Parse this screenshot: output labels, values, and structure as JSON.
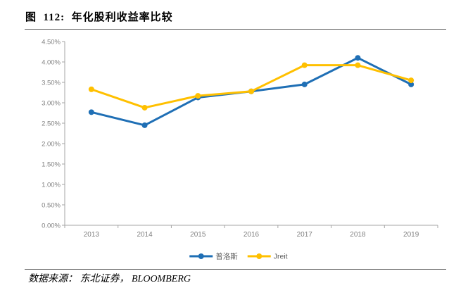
{
  "header": {
    "title": "图  112:  年化股利收益率比较"
  },
  "footer": {
    "source": "数据来源： 东北证券， BLOOMBERG"
  },
  "chart_data": {
    "type": "line",
    "title": "年化股利收益率比较",
    "categories": [
      "2013",
      "2014",
      "2015",
      "2016",
      "2017",
      "2018",
      "2019"
    ],
    "series": [
      {
        "name": "普洛斯",
        "color": "#1F6FB5",
        "values": [
          2.77,
          2.45,
          3.13,
          3.28,
          3.45,
          4.1,
          3.45
        ]
      },
      {
        "name": "Jreit",
        "color": "#FFC000",
        "values": [
          3.33,
          2.88,
          3.17,
          3.28,
          3.92,
          3.92,
          3.55
        ]
      }
    ],
    "value_unit": "%",
    "ylim": [
      0,
      4.5
    ],
    "y_tick_step": 0.5,
    "y_tick_labels": [
      "0.00%",
      "0.50%",
      "1.00%",
      "1.50%",
      "2.00%",
      "2.50%",
      "3.00%",
      "3.50%",
      "4.00%",
      "4.50%"
    ],
    "grid": false,
    "legend_position": "bottom",
    "axis_color": "#A6A6A6",
    "tick_label_color": "#808080",
    "legend_text_color": "#595959"
  }
}
